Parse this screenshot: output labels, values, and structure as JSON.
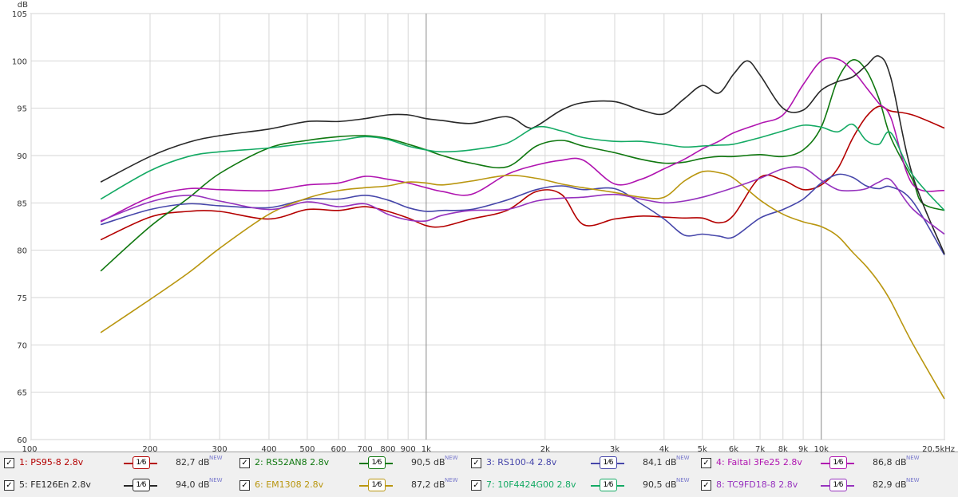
{
  "chart_data": {
    "type": "line",
    "ylabel": "dB",
    "xlabel": "",
    "x_scale": "log",
    "xlim": [
      100,
      20500
    ],
    "ylim": [
      60,
      105
    ],
    "x_ticks": [
      {
        "v": 100,
        "label": "100"
      },
      {
        "v": 200,
        "label": "200"
      },
      {
        "v": 300,
        "label": "300"
      },
      {
        "v": 400,
        "label": "400"
      },
      {
        "v": 500,
        "label": "500"
      },
      {
        "v": 600,
        "label": "600"
      },
      {
        "v": 700,
        "label": "700"
      },
      {
        "v": 800,
        "label": "800"
      },
      {
        "v": 900,
        "label": "900"
      },
      {
        "v": 1000,
        "label": "1k"
      },
      {
        "v": 2000,
        "label": "2k"
      },
      {
        "v": 3000,
        "label": "3k"
      },
      {
        "v": 4000,
        "label": "4k"
      },
      {
        "v": 5000,
        "label": "5k"
      },
      {
        "v": 6000,
        "label": "6k"
      },
      {
        "v": 7000,
        "label": "7k"
      },
      {
        "v": 8000,
        "label": "8k"
      },
      {
        "v": 9000,
        "label": "9k"
      },
      {
        "v": 10000,
        "label": "10k"
      },
      {
        "v": 20500,
        "label": "20,5kHz"
      }
    ],
    "y_ticks": [
      60,
      65,
      70,
      75,
      80,
      85,
      90,
      95,
      100,
      105
    ],
    "grid": true,
    "series": [
      {
        "name": "1: PS95-8 2.8v",
        "color": "#b40000",
        "smoothing": "1/6",
        "level": "82,7 dB",
        "x": [
          150,
          200,
          250,
          300,
          400,
          500,
          600,
          700,
          800,
          900,
          1000,
          1100,
          1300,
          1600,
          1900,
          2200,
          2500,
          3000,
          3500,
          4000,
          4500,
          5000,
          5500,
          6000,
          7000,
          8000,
          9000,
          10000,
          11000,
          12000,
          13000,
          14000,
          15000,
          17000,
          20500
        ],
        "y": [
          81.1,
          83.5,
          84.1,
          84.1,
          83.3,
          84.3,
          84.2,
          84.6,
          84.1,
          83.4,
          82.6,
          82.5,
          83.3,
          84.2,
          86.2,
          85.9,
          82.7,
          83.3,
          83.6,
          83.5,
          83.4,
          83.4,
          82.9,
          83.7,
          87.7,
          87.4,
          86.4,
          86.9,
          88.6,
          91.8,
          94.1,
          95.2,
          94.7,
          94.3,
          92.9
        ]
      },
      {
        "name": "2: RS52AN8 2.8v",
        "color": "#107810",
        "smoothing": "1/6",
        "level": "90,5 dB",
        "x": [
          150,
          200,
          250,
          300,
          400,
          500,
          600,
          700,
          800,
          900,
          1000,
          1100,
          1300,
          1600,
          1900,
          2200,
          2500,
          3000,
          3500,
          4000,
          4500,
          5000,
          5500,
          6000,
          7000,
          8000,
          9000,
          10000,
          11000,
          12000,
          13000,
          14000,
          15000,
          17000,
          18000,
          20500
        ],
        "y": [
          77.8,
          82.5,
          85.5,
          88.1,
          90.8,
          91.6,
          92.0,
          92.1,
          91.8,
          91.2,
          90.6,
          90.0,
          89.2,
          88.8,
          91.0,
          91.6,
          91.0,
          90.3,
          89.6,
          89.2,
          89.3,
          89.7,
          89.9,
          89.9,
          90.1,
          89.9,
          90.6,
          93.0,
          98.0,
          100.1,
          99.0,
          96.0,
          91.9,
          87.5,
          85.0,
          84.2
        ]
      },
      {
        "name": "3: RS100-4 2.8v",
        "color": "#4646aa",
        "smoothing": "1/6",
        "level": "84,1 dB",
        "x": [
          150,
          200,
          250,
          300,
          400,
          500,
          600,
          700,
          800,
          900,
          1000,
          1100,
          1300,
          1600,
          1900,
          2200,
          2500,
          3000,
          3500,
          4000,
          4500,
          5000,
          5500,
          6000,
          7000,
          8000,
          9000,
          10000,
          11000,
          12000,
          13000,
          14000,
          15000,
          17000,
          20500
        ],
        "y": [
          82.7,
          84.3,
          84.9,
          84.7,
          84.5,
          85.4,
          85.4,
          85.8,
          85.3,
          84.5,
          84.1,
          84.2,
          84.3,
          85.3,
          86.4,
          86.8,
          86.4,
          86.5,
          84.9,
          83.3,
          81.6,
          81.7,
          81.5,
          81.4,
          83.4,
          84.3,
          85.4,
          87.1,
          88.0,
          87.7,
          86.8,
          86.5,
          86.7,
          85.2,
          79.5
        ]
      },
      {
        "name": "4: Faital 3Fe25 2.8v",
        "color": "#b014b0",
        "smoothing": "1/6",
        "level": "86,8 dB",
        "x": [
          150,
          200,
          250,
          300,
          400,
          500,
          600,
          700,
          800,
          900,
          1000,
          1100,
          1300,
          1600,
          1900,
          2200,
          2500,
          3000,
          3500,
          4000,
          4500,
          5000,
          5500,
          6000,
          7000,
          8000,
          9000,
          10000,
          11000,
          12000,
          13000,
          14000,
          15000,
          17000,
          20500
        ],
        "y": [
          83.0,
          85.6,
          86.5,
          86.4,
          86.3,
          86.9,
          87.1,
          87.8,
          87.5,
          87.1,
          86.6,
          86.2,
          85.9,
          88.0,
          89.0,
          89.5,
          89.5,
          87.0,
          87.5,
          88.6,
          89.6,
          90.7,
          91.5,
          92.4,
          93.4,
          94.3,
          97.5,
          100.0,
          100.2,
          99.0,
          97.2,
          95.5,
          94.0,
          87.0,
          86.3
        ]
      },
      {
        "name": "5: FE126En 2.8v",
        "color": "#282828",
        "smoothing": "1/6",
        "level": "94,0 dB",
        "x": [
          150,
          200,
          250,
          300,
          400,
          500,
          600,
          700,
          800,
          900,
          1000,
          1100,
          1300,
          1600,
          1800,
          1900,
          2200,
          2500,
          3000,
          3500,
          4000,
          4500,
          5000,
          5500,
          6000,
          6500,
          7000,
          8000,
          9000,
          10000,
          11000,
          12000,
          13000,
          14000,
          15000,
          17000,
          20500
        ],
        "y": [
          87.2,
          89.9,
          91.4,
          92.1,
          92.8,
          93.6,
          93.6,
          93.9,
          94.3,
          94.3,
          93.9,
          93.7,
          93.4,
          94.1,
          93.0,
          93.1,
          94.8,
          95.6,
          95.7,
          94.8,
          94.4,
          96.0,
          97.4,
          96.6,
          98.6,
          100.0,
          98.5,
          95.0,
          94.8,
          96.9,
          97.8,
          98.3,
          99.5,
          100.5,
          98.2,
          88.0,
          79.6
        ]
      },
      {
        "name": "6: EM1308 2.8v",
        "color": "#b9960f",
        "smoothing": "1/6",
        "level": "87,2 dB",
        "x": [
          150,
          200,
          250,
          300,
          400,
          500,
          600,
          700,
          800,
          900,
          1000,
          1100,
          1300,
          1600,
          1900,
          2200,
          2500,
          3000,
          3500,
          4000,
          4500,
          5000,
          5500,
          6000,
          7000,
          8000,
          9000,
          10000,
          11000,
          12000,
          13000,
          14000,
          15000,
          17000,
          20500
        ],
        "y": [
          71.3,
          74.8,
          77.6,
          80.2,
          83.8,
          85.5,
          86.3,
          86.6,
          86.8,
          87.2,
          87.1,
          86.9,
          87.3,
          87.9,
          87.6,
          87.0,
          86.6,
          86.1,
          85.6,
          85.6,
          87.3,
          88.3,
          88.2,
          87.6,
          85.3,
          83.8,
          83.0,
          82.5,
          81.5,
          79.8,
          78.3,
          76.6,
          74.6,
          70.2,
          64.3
        ]
      },
      {
        "name": "7: 10F4424G00 2.8v",
        "color": "#14aa64",
        "smoothing": "1/6",
        "level": "90,5 dB",
        "x": [
          150,
          200,
          250,
          300,
          400,
          500,
          600,
          700,
          800,
          900,
          1000,
          1100,
          1300,
          1600,
          1900,
          2200,
          2500,
          3000,
          3500,
          4000,
          4500,
          5000,
          5500,
          6000,
          7000,
          8000,
          9000,
          10000,
          11000,
          12000,
          13000,
          14000,
          15000,
          17000,
          20500
        ],
        "y": [
          85.4,
          88.4,
          89.9,
          90.4,
          90.8,
          91.3,
          91.6,
          92.0,
          91.7,
          91.0,
          90.6,
          90.4,
          90.6,
          91.3,
          93.0,
          92.6,
          91.9,
          91.5,
          91.5,
          91.2,
          90.9,
          91.0,
          91.1,
          91.2,
          91.9,
          92.6,
          93.2,
          93.0,
          92.5,
          93.3,
          91.6,
          91.2,
          92.4,
          88.0,
          84.2
        ]
      },
      {
        "name": "8: TC9FD18-8 2.8v",
        "color": "#9632be",
        "smoothing": "1/6",
        "level": "82,9 dB",
        "x": [
          150,
          200,
          250,
          300,
          400,
          500,
          600,
          700,
          800,
          900,
          1000,
          1100,
          1300,
          1600,
          1900,
          2200,
          2500,
          3000,
          3500,
          4000,
          4500,
          5000,
          5500,
          6000,
          7000,
          8000,
          9000,
          10000,
          11000,
          12000,
          13000,
          14000,
          15000,
          17000,
          20500
        ],
        "y": [
          83.1,
          85.1,
          85.8,
          85.2,
          84.3,
          85.1,
          84.6,
          84.9,
          83.8,
          83.2,
          83.1,
          83.7,
          84.2,
          84.3,
          85.2,
          85.5,
          85.6,
          85.9,
          85.4,
          85.0,
          85.2,
          85.6,
          86.1,
          86.6,
          87.6,
          88.6,
          88.7,
          87.4,
          86.4,
          86.3,
          86.5,
          87.2,
          87.4,
          84.4,
          81.7
        ]
      }
    ]
  },
  "ylabel_text": "dB",
  "checkbox_glyph": "✓",
  "smoothing_label": "1⁄6",
  "new_badge": "NEW"
}
